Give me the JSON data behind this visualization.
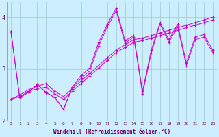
{
  "xlabel": "Windchill (Refroidissement éolien,°C)",
  "bg_color": "#cceeff",
  "line_color": "#cc00cc",
  "grid_color": "#99cccc",
  "xlim": [
    -0.5,
    23.5
  ],
  "ylim": [
    2.0,
    4.3
  ],
  "yticks": [
    2,
    3,
    4
  ],
  "xticks": [
    0,
    1,
    2,
    3,
    4,
    5,
    6,
    7,
    8,
    9,
    10,
    11,
    12,
    13,
    14,
    15,
    16,
    17,
    18,
    19,
    20,
    21,
    22,
    23
  ],
  "line1": [
    3.73,
    2.45,
    2.55,
    2.7,
    2.55,
    2.45,
    2.22,
    2.65,
    2.82,
    2.97,
    3.45,
    3.82,
    4.13,
    3.5,
    3.62,
    2.52,
    3.32,
    3.87,
    3.52,
    3.82,
    3.07,
    3.57,
    3.62,
    3.32
  ],
  "line2": [
    3.73,
    2.45,
    2.55,
    2.7,
    2.55,
    2.45,
    2.22,
    2.65,
    2.88,
    3.02,
    3.52,
    3.87,
    4.18,
    3.55,
    3.65,
    2.57,
    3.37,
    3.9,
    3.57,
    3.87,
    3.12,
    3.62,
    3.67,
    3.37
  ],
  "line3": [
    2.42,
    2.5,
    2.6,
    2.67,
    2.72,
    2.57,
    2.47,
    2.62,
    2.77,
    2.92,
    3.07,
    3.22,
    3.37,
    3.47,
    3.57,
    3.6,
    3.65,
    3.7,
    3.75,
    3.8,
    3.85,
    3.9,
    3.95,
    4.0
  ],
  "line4": [
    2.42,
    2.47,
    2.57,
    2.62,
    2.65,
    2.52,
    2.42,
    2.57,
    2.72,
    2.87,
    3.02,
    3.17,
    3.32,
    3.42,
    3.52,
    3.55,
    3.6,
    3.65,
    3.7,
    3.75,
    3.8,
    3.85,
    3.9,
    3.95
  ]
}
